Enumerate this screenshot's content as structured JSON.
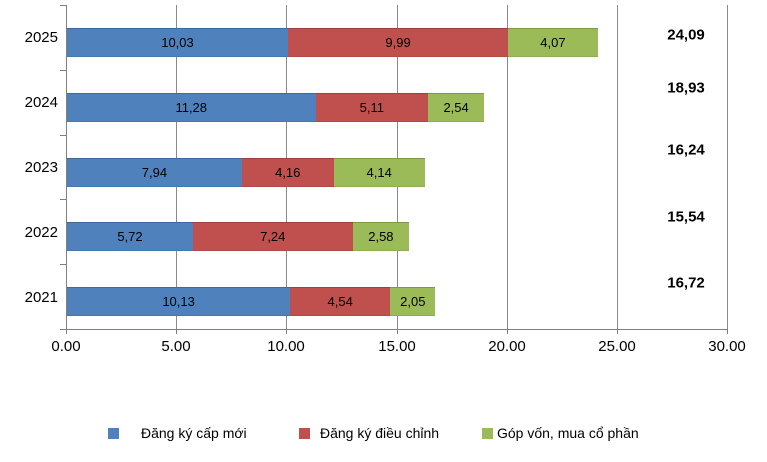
{
  "chart_data": {
    "type": "bar",
    "orientation": "horizontal-stacked",
    "title": "",
    "categories": [
      "2025",
      "2024",
      "2023",
      "2022",
      "2021"
    ],
    "series": [
      {
        "name": "Đăng ký cấp mới",
        "color": "#4F81BD",
        "values": [
          10.03,
          11.28,
          7.94,
          5.72,
          10.13
        ],
        "labels": [
          "10,03",
          "11,28",
          "7,94",
          "5,72",
          "10,13"
        ]
      },
      {
        "name": "Đăng ký điều chỉnh",
        "color": "#C0504D",
        "values": [
          9.99,
          5.11,
          4.16,
          7.24,
          4.54
        ],
        "labels": [
          "9,99",
          "5,11",
          "4,16",
          "7,24",
          "4,54"
        ]
      },
      {
        "name": "Góp vốn, mua cổ phần",
        "color": "#9BBB59",
        "values": [
          4.07,
          2.54,
          4.14,
          2.58,
          2.05
        ],
        "labels": [
          "4,07",
          "2,54",
          "4,14",
          "2,58",
          "2,05"
        ]
      }
    ],
    "totals": [
      "24,09",
      "18,93",
      "16,24",
      "15,54",
      "16,72"
    ],
    "x_axis": {
      "min": 0,
      "max": 30,
      "tick_step": 5,
      "tick_labels": [
        "0.00",
        "5.00",
        "10.00",
        "15.00",
        "20.00",
        "25.00",
        "30.00"
      ]
    },
    "grid": "vertical",
    "legend_position": "bottom",
    "colors": {
      "axis": "#808080",
      "gridline": "#8A8A8A",
      "label_text": "#000000"
    }
  }
}
